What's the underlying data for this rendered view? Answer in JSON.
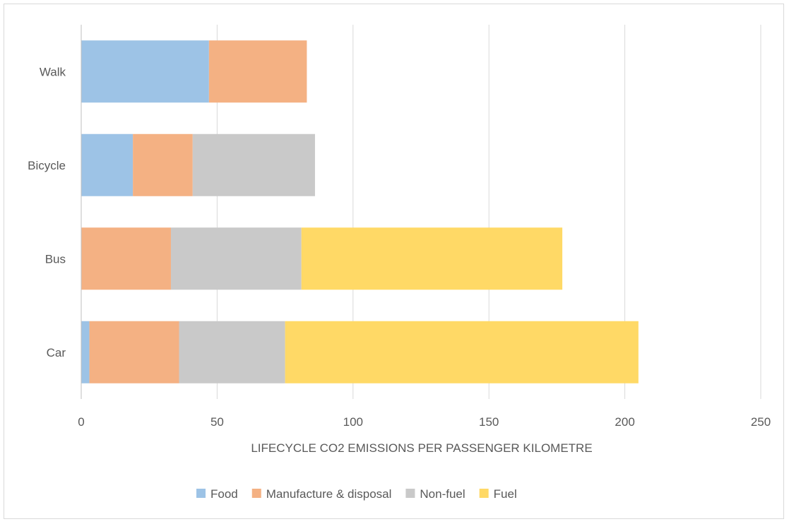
{
  "chart_data": {
    "type": "bar",
    "orientation": "horizontal",
    "stacked": true,
    "categories": [
      "Walk",
      "Bicycle",
      "Bus",
      "Car"
    ],
    "series": [
      {
        "name": "Food",
        "color": "#9DC3E6",
        "values": [
          47,
          19,
          0,
          3
        ]
      },
      {
        "name": "Manufacture & disposal",
        "color": "#F4B183",
        "values": [
          36,
          22,
          33,
          33
        ]
      },
      {
        "name": "Non-fuel",
        "color": "#C9C9C9",
        "values": [
          0,
          45,
          48,
          39
        ]
      },
      {
        "name": "Fuel",
        "color": "#FFD966",
        "values": [
          0,
          0,
          96,
          130
        ]
      }
    ],
    "xlabel": "LIFECYCLE CO2 EMISSIONS PER PASSENGER KILOMETRE",
    "ylabel": "",
    "xlim": [
      0,
      250
    ],
    "xticks": [
      "0",
      "50",
      "100",
      "150",
      "200",
      "250"
    ],
    "grid": true,
    "legend": "bottom"
  }
}
